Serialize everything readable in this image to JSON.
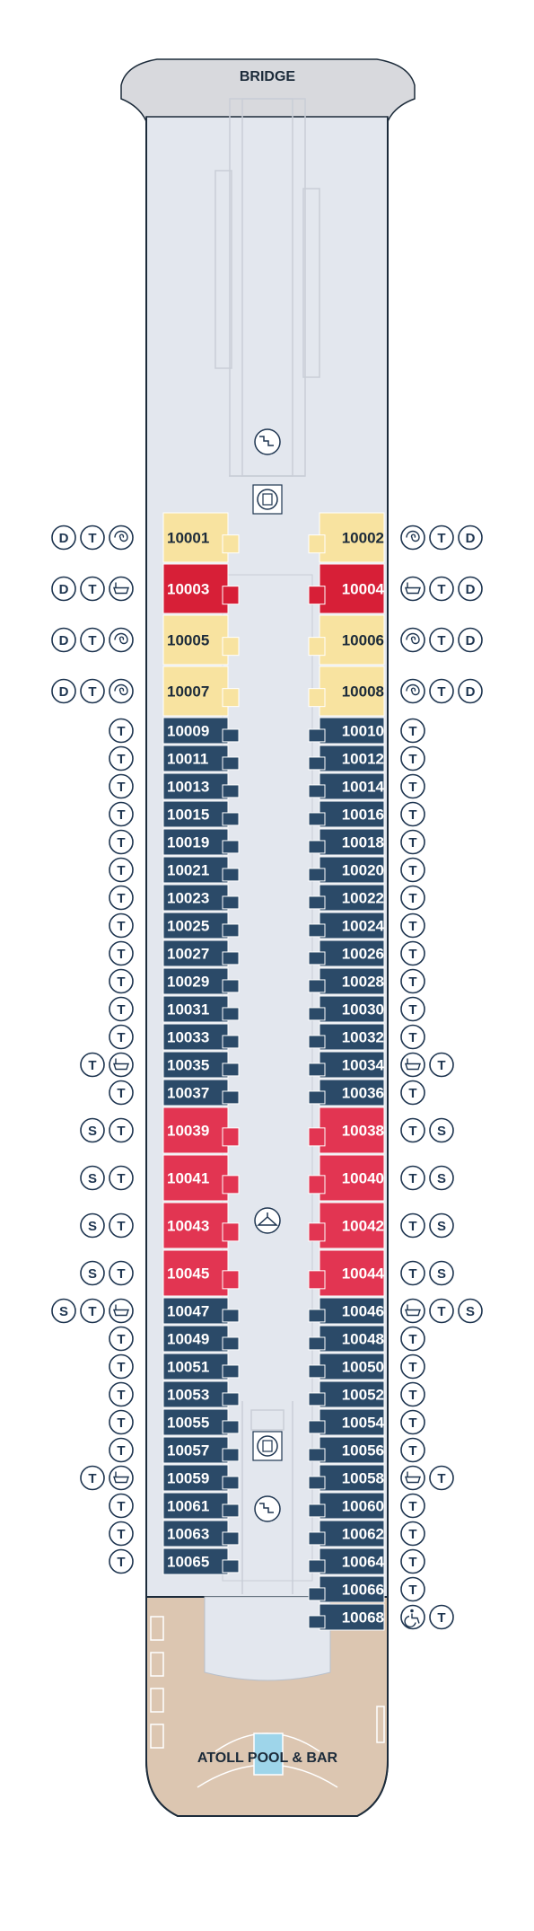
{
  "deck": {
    "bridge_label": "BRIDGE",
    "pool_label": "ATOLL POOL & BAR"
  },
  "legend_codes": {
    "D": "D",
    "T": "T",
    "S": "S"
  },
  "colors": {
    "hull": "#e3e7ee",
    "hull_outline": "#1c2b3a",
    "bridge": "#d8d9dd",
    "aft_deck": "#dcc6b1",
    "suite_yellow": "#f8e3a0",
    "suite_red": "#d71f37",
    "veranda_red": "#e23552",
    "standard_blue": "#2b4a68",
    "icon_stroke": "#1e3550",
    "pool": "#9ed5ea"
  },
  "cabins": {
    "port": [
      {
        "no": "10001",
        "type": "yellow",
        "icons": [
          "D",
          "T",
          "spa"
        ]
      },
      {
        "no": "10003",
        "type": "red",
        "icons": [
          "D",
          "T",
          "tub"
        ]
      },
      {
        "no": "10005",
        "type": "yellow",
        "icons": [
          "D",
          "T",
          "spa"
        ]
      },
      {
        "no": "10007",
        "type": "yellow",
        "icons": [
          "D",
          "T",
          "spa"
        ]
      },
      {
        "no": "10009",
        "type": "blue",
        "icons": [
          "T"
        ]
      },
      {
        "no": "10011",
        "type": "blue",
        "icons": [
          "T"
        ]
      },
      {
        "no": "10013",
        "type": "blue",
        "icons": [
          "T"
        ]
      },
      {
        "no": "10015",
        "type": "blue",
        "icons": [
          "T"
        ]
      },
      {
        "no": "10019",
        "type": "blue",
        "icons": [
          "T"
        ]
      },
      {
        "no": "10021",
        "type": "blue",
        "icons": [
          "T"
        ]
      },
      {
        "no": "10023",
        "type": "blue",
        "icons": [
          "T"
        ]
      },
      {
        "no": "10025",
        "type": "blue",
        "icons": [
          "T"
        ]
      },
      {
        "no": "10027",
        "type": "blue",
        "icons": [
          "T"
        ]
      },
      {
        "no": "10029",
        "type": "blue",
        "icons": [
          "T"
        ]
      },
      {
        "no": "10031",
        "type": "blue",
        "icons": [
          "T"
        ]
      },
      {
        "no": "10033",
        "type": "blue",
        "icons": [
          "T"
        ]
      },
      {
        "no": "10035",
        "type": "blue",
        "icons": [
          "T",
          "tub"
        ]
      },
      {
        "no": "10037",
        "type": "blue",
        "icons": [
          "T"
        ]
      },
      {
        "no": "10039",
        "type": "pink",
        "icons": [
          "S",
          "T"
        ]
      },
      {
        "no": "10041",
        "type": "pink",
        "icons": [
          "S",
          "T"
        ]
      },
      {
        "no": "10043",
        "type": "pink",
        "icons": [
          "S",
          "T"
        ]
      },
      {
        "no": "10045",
        "type": "pink",
        "icons": [
          "S",
          "T"
        ]
      },
      {
        "no": "10047",
        "type": "blue",
        "icons": [
          "S",
          "T",
          "tub"
        ]
      },
      {
        "no": "10049",
        "type": "blue",
        "icons": [
          "T"
        ]
      },
      {
        "no": "10051",
        "type": "blue",
        "icons": [
          "T"
        ]
      },
      {
        "no": "10053",
        "type": "blue",
        "icons": [
          "T"
        ]
      },
      {
        "no": "10055",
        "type": "blue",
        "icons": [
          "T"
        ]
      },
      {
        "no": "10057",
        "type": "blue",
        "icons": [
          "T"
        ]
      },
      {
        "no": "10059",
        "type": "blue",
        "icons": [
          "T",
          "tub"
        ]
      },
      {
        "no": "10061",
        "type": "blue",
        "icons": [
          "T"
        ]
      },
      {
        "no": "10063",
        "type": "blue",
        "icons": [
          "T"
        ]
      },
      {
        "no": "10065",
        "type": "blue",
        "icons": [
          "T"
        ]
      }
    ],
    "starboard": [
      {
        "no": "10002",
        "type": "yellow",
        "icons": [
          "spa",
          "T",
          "D"
        ]
      },
      {
        "no": "10004",
        "type": "red",
        "icons": [
          "tub",
          "T",
          "D"
        ]
      },
      {
        "no": "10006",
        "type": "yellow",
        "icons": [
          "spa",
          "T",
          "D"
        ]
      },
      {
        "no": "10008",
        "type": "yellow",
        "icons": [
          "spa",
          "T",
          "D"
        ]
      },
      {
        "no": "10010",
        "type": "blue",
        "icons": [
          "T"
        ]
      },
      {
        "no": "10012",
        "type": "blue",
        "icons": [
          "T"
        ]
      },
      {
        "no": "10014",
        "type": "blue",
        "icons": [
          "T"
        ]
      },
      {
        "no": "10016",
        "type": "blue",
        "icons": [
          "T"
        ]
      },
      {
        "no": "10018",
        "type": "blue",
        "icons": [
          "T"
        ]
      },
      {
        "no": "10020",
        "type": "blue",
        "icons": [
          "T"
        ]
      },
      {
        "no": "10022",
        "type": "blue",
        "icons": [
          "T"
        ]
      },
      {
        "no": "10024",
        "type": "blue",
        "icons": [
          "T"
        ]
      },
      {
        "no": "10026",
        "type": "blue",
        "icons": [
          "T"
        ]
      },
      {
        "no": "10028",
        "type": "blue",
        "icons": [
          "T"
        ]
      },
      {
        "no": "10030",
        "type": "blue",
        "icons": [
          "T"
        ]
      },
      {
        "no": "10032",
        "type": "blue",
        "icons": [
          "T"
        ]
      },
      {
        "no": "10034",
        "type": "blue",
        "icons": [
          "tub",
          "T"
        ]
      },
      {
        "no": "10036",
        "type": "blue",
        "icons": [
          "T"
        ]
      },
      {
        "no": "10038",
        "type": "pink",
        "icons": [
          "T",
          "S"
        ]
      },
      {
        "no": "10040",
        "type": "pink",
        "icons": [
          "T",
          "S"
        ]
      },
      {
        "no": "10042",
        "type": "pink",
        "icons": [
          "T",
          "S"
        ]
      },
      {
        "no": "10044",
        "type": "pink",
        "icons": [
          "T",
          "S"
        ]
      },
      {
        "no": "10046",
        "type": "blue",
        "icons": [
          "tub",
          "T",
          "S"
        ]
      },
      {
        "no": "10048",
        "type": "blue",
        "icons": [
          "T"
        ]
      },
      {
        "no": "10050",
        "type": "blue",
        "icons": [
          "T"
        ]
      },
      {
        "no": "10052",
        "type": "blue",
        "icons": [
          "T"
        ]
      },
      {
        "no": "10054",
        "type": "blue",
        "icons": [
          "T"
        ]
      },
      {
        "no": "10056",
        "type": "blue",
        "icons": [
          "T"
        ]
      },
      {
        "no": "10058",
        "type": "blue",
        "icons": [
          "tub",
          "T"
        ]
      },
      {
        "no": "10060",
        "type": "blue",
        "icons": [
          "T"
        ]
      },
      {
        "no": "10062",
        "type": "blue",
        "icons": [
          "T"
        ]
      },
      {
        "no": "10064",
        "type": "blue",
        "icons": [
          "T"
        ]
      },
      {
        "no": "10066",
        "type": "blue",
        "icons": [
          "T"
        ]
      },
      {
        "no": "10068",
        "type": "blue",
        "icons": [
          "accessible",
          "T"
        ]
      }
    ]
  }
}
